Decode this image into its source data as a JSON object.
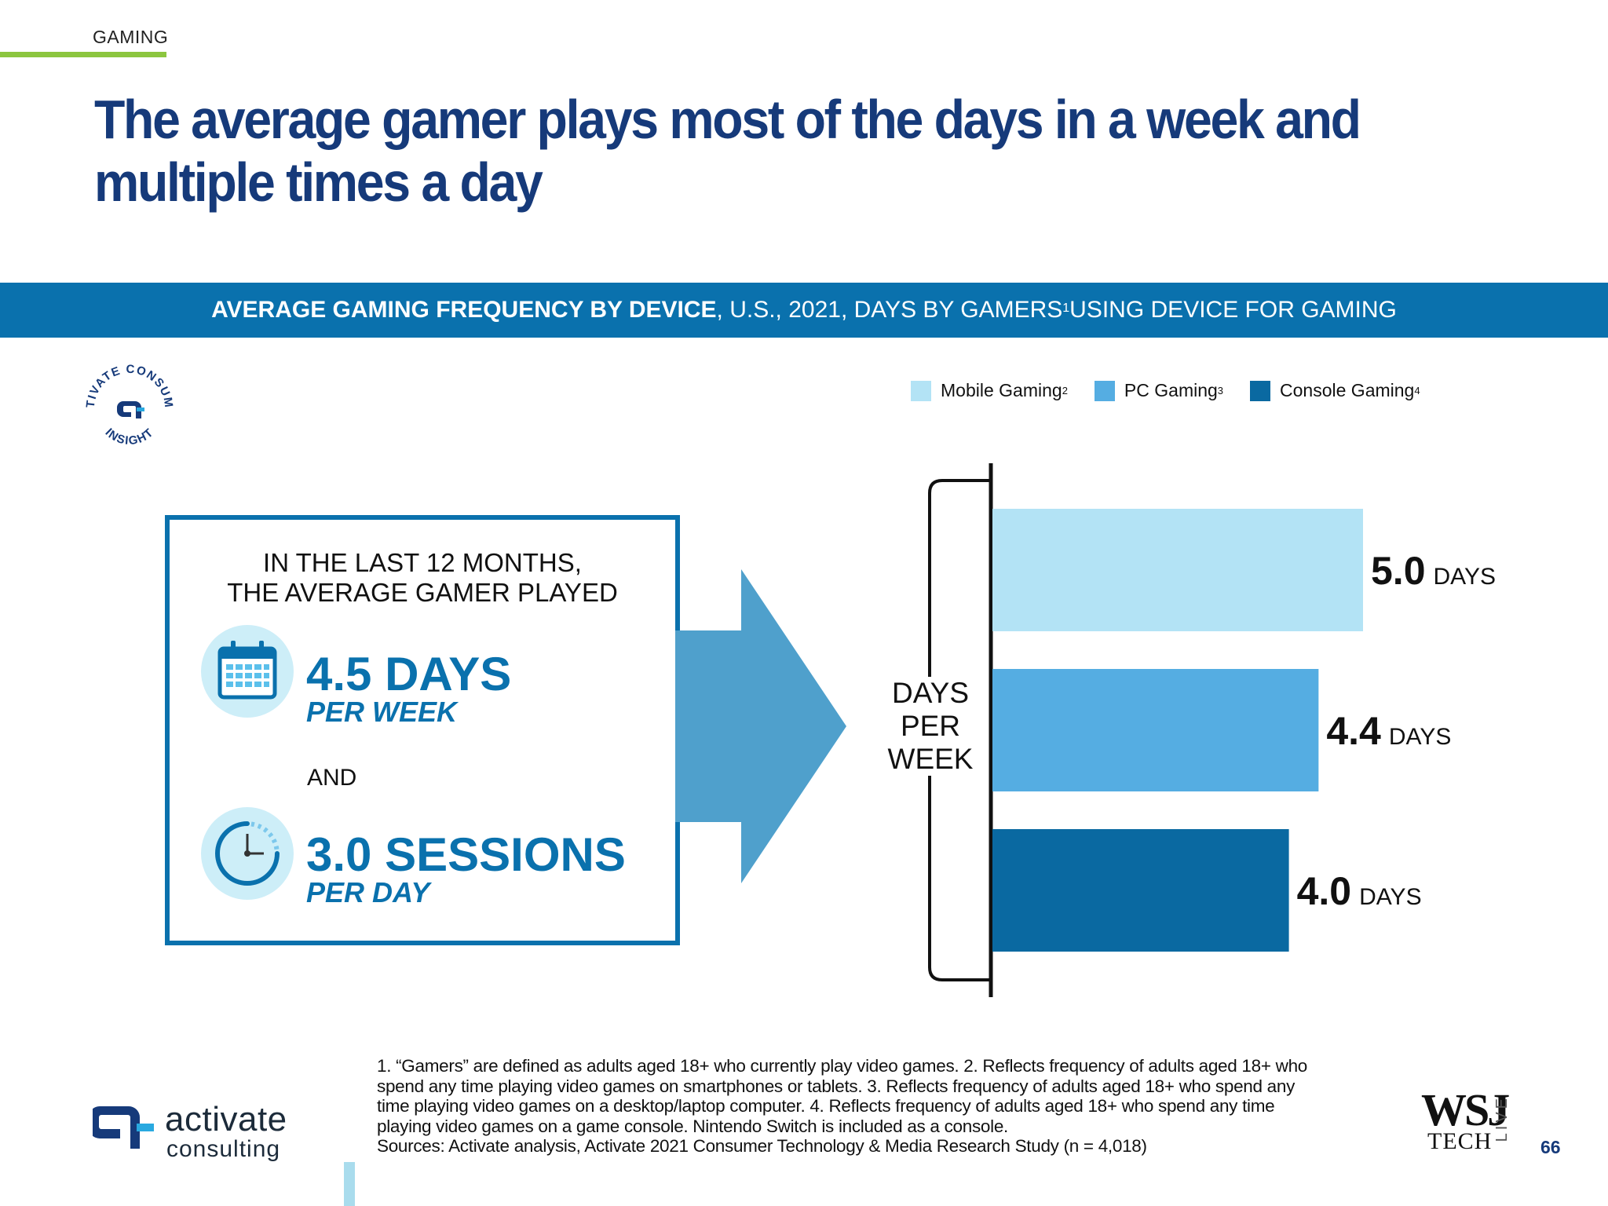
{
  "header": {
    "section": "GAMING",
    "headline": "The average gamer plays most of the days in a week and multiple times a day"
  },
  "banner": {
    "bold": "AVERAGE GAMING FREQUENCY BY DEVICE",
    "rest_1": ", U.S., 2021, DAYS BY GAMERS",
    "sup": "1",
    "rest_2": " USING DEVICE FOR GAMING"
  },
  "seal": {
    "top_text": "ACTIVATE CONSUMER",
    "bottom_text": "INSIGHT"
  },
  "infobox": {
    "heading_line1": "IN THE LAST 12 MONTHS,",
    "heading_line2": "THE AVERAGE GAMER PLAYED",
    "stat1_value": "4.5 DAYS",
    "stat1_unit": "PER WEEK",
    "and_label": "AND",
    "stat2_value": "3.0 SESSIONS",
    "stat2_unit": "PER DAY",
    "icons": [
      "calendar-icon",
      "clock-icon"
    ]
  },
  "chart_data": {
    "type": "bar",
    "orientation": "horizontal",
    "ylabel": "DAYS PER WEEK",
    "value_suffix": "DAYS",
    "categories": [
      "Mobile Gaming",
      "PC Gaming",
      "Console Gaming"
    ],
    "category_sups": [
      "2",
      "3",
      "4"
    ],
    "values": [
      5.0,
      4.4,
      4.0
    ],
    "value_labels": [
      "5.0",
      "4.4",
      "4.0"
    ],
    "colors": [
      "#b3e3f5",
      "#55ade2",
      "#0a69a1"
    ],
    "legend_position": "top-right",
    "grid": false
  },
  "footnote": {
    "line1": "1. “Gamers” are defined as adults aged 18+ who currently play video games.  2. Reflects frequency of adults aged 18+ who",
    "line2": "spend any time playing video games on smartphones or tablets.  3. Reflects frequency of adults aged 18+ who spend any",
    "line3": "time playing video games on a desktop/laptop computer.  4. Reflects frequency of adults aged 18+ who spend any time",
    "line4": "playing video games on a game console. Nintendo Switch is included as a console.",
    "line5": "Sources: Activate analysis, Activate 2021 Consumer Technology & Media Research Study (n = 4,018)"
  },
  "logo": {
    "name": "activate",
    "tagline": "consulting"
  },
  "wsj": {
    "main": "WSJ",
    "tech": "TECH",
    "live": "LIVE"
  },
  "page_number": "66",
  "colors": {
    "brand_blue": "#0a71ad",
    "headline_navy": "#163a7a",
    "accent_green": "#8cc63f"
  }
}
